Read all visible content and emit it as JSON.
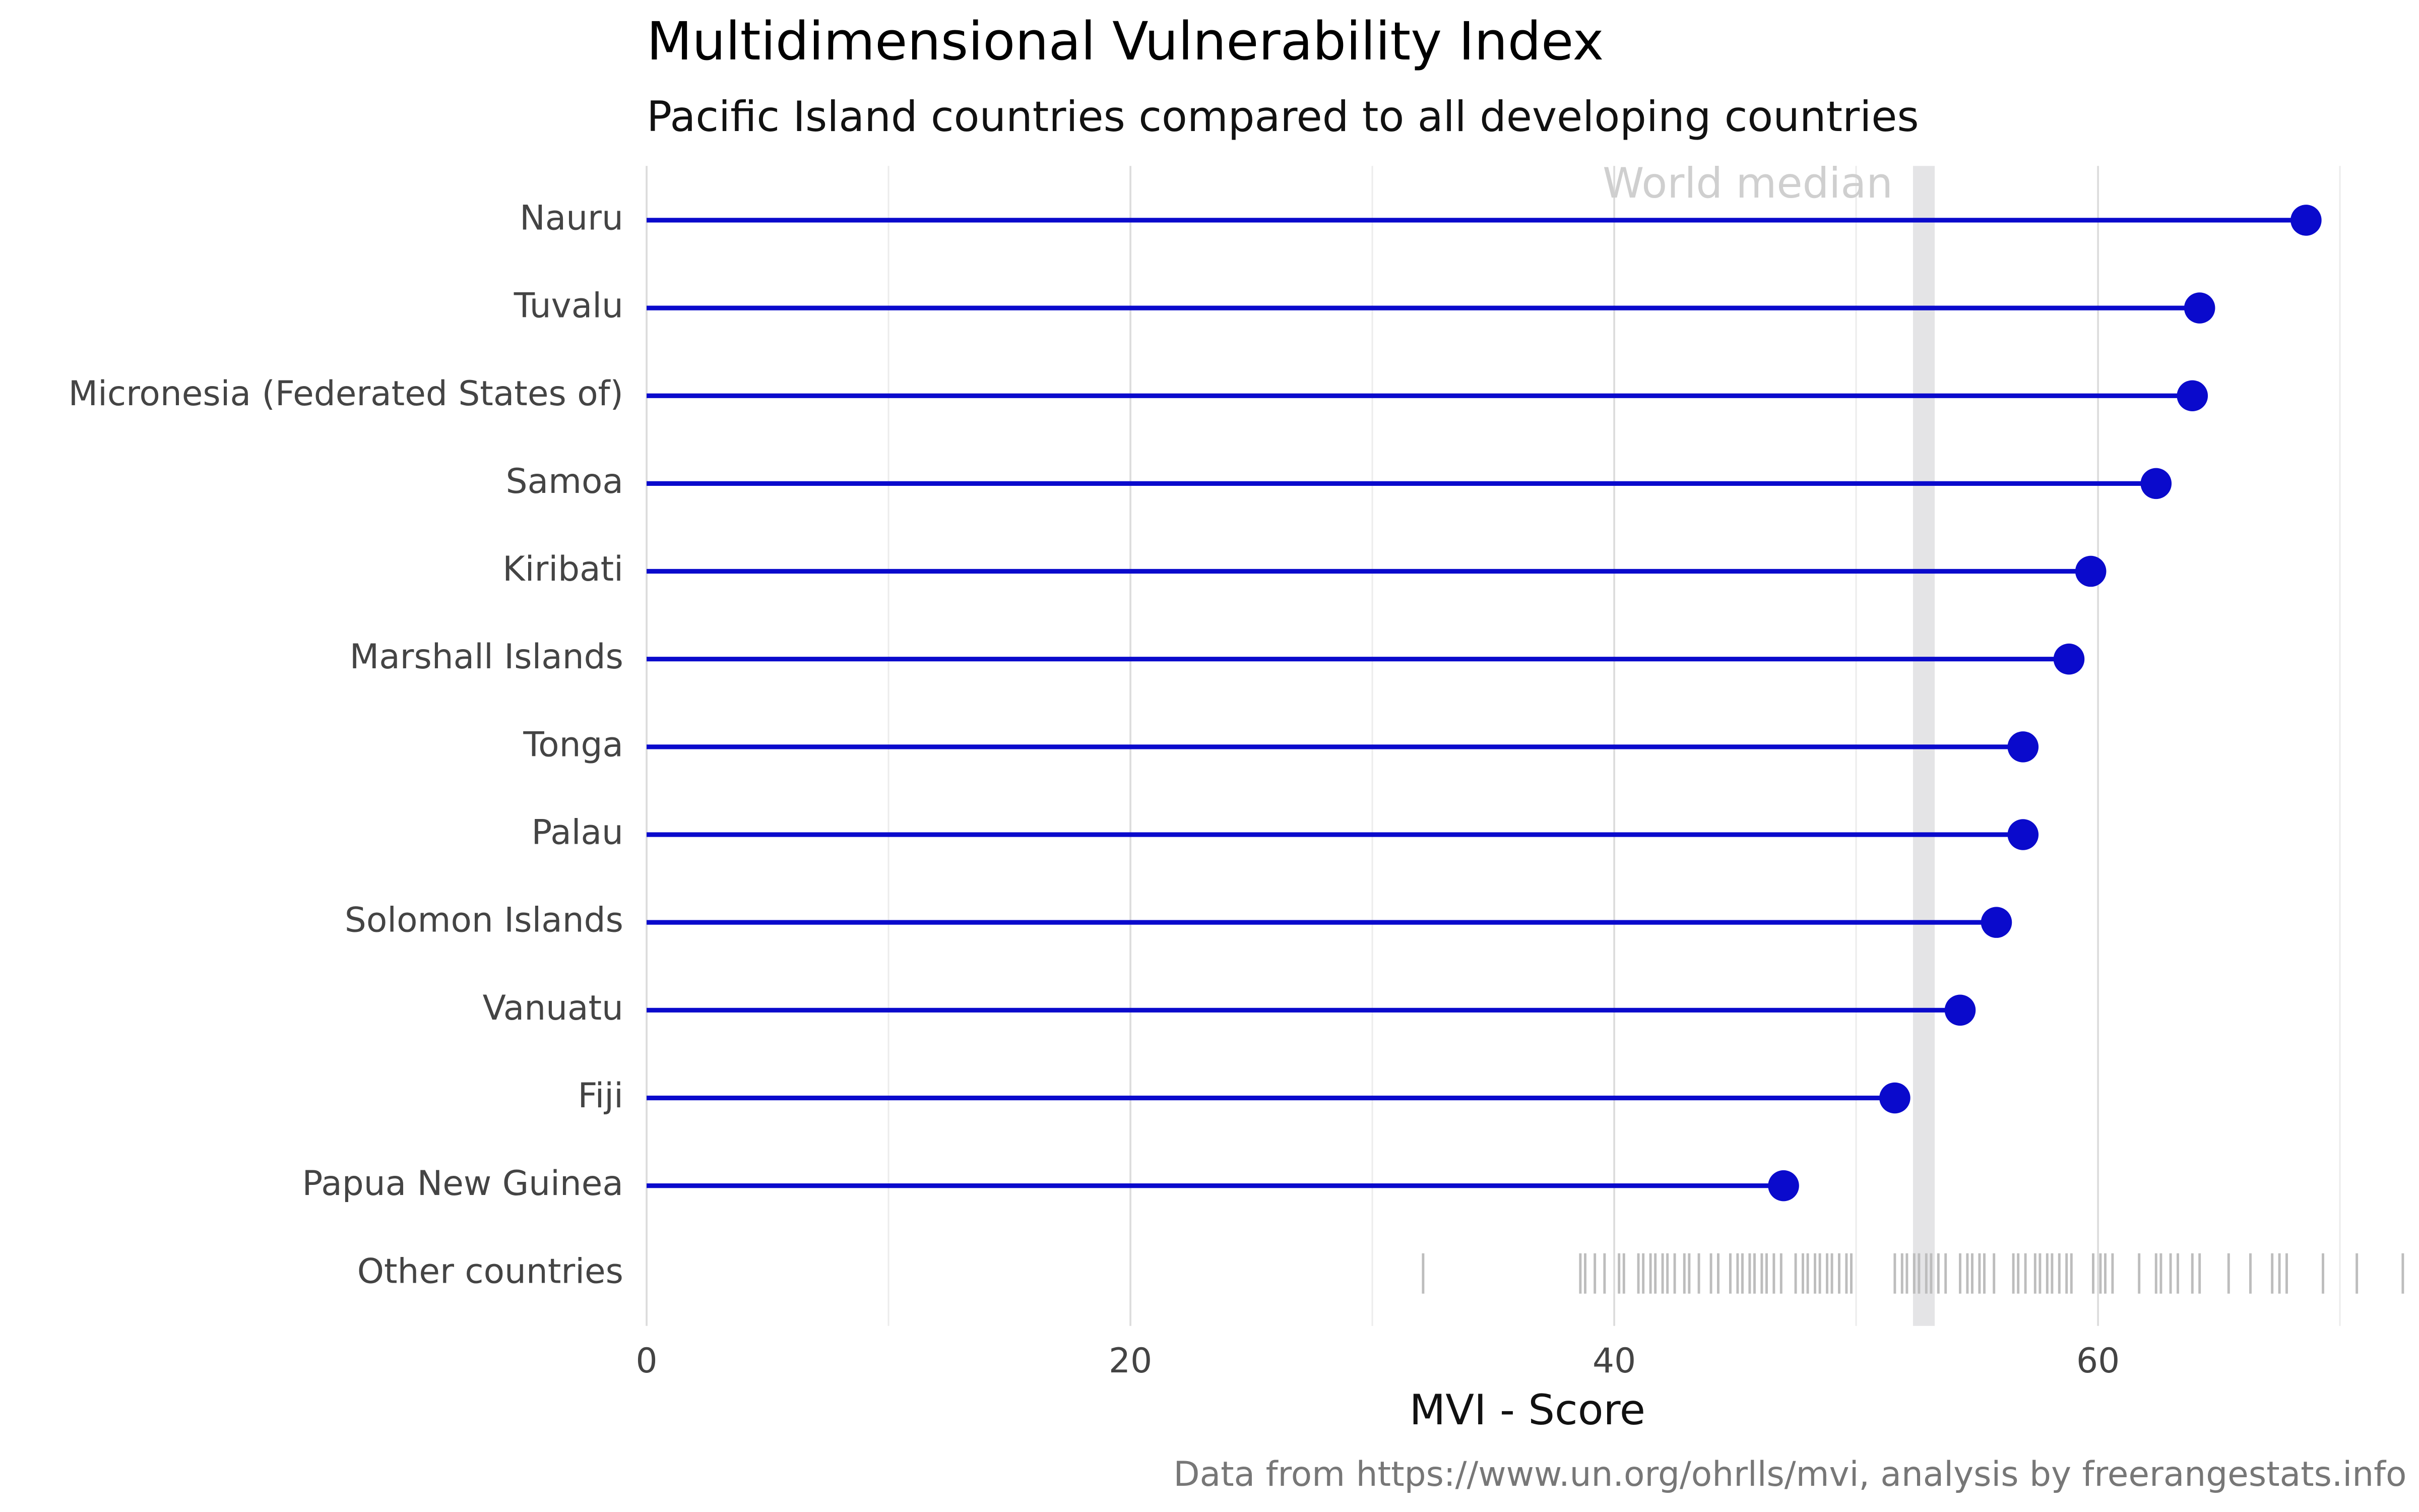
{
  "chart_data": {
    "type": "lollipop",
    "title": "Multidimensional Vulnerability Index",
    "subtitle": "Pacific Island countries compared to all developing countries",
    "x_label": "MVI - Score",
    "caption": "Data from https://www.un.org/ohrlls/mvi, analysis by freerangestats.info",
    "categories": [
      "Nauru",
      "Tuvalu",
      "Micronesia (Federated States of)",
      "Samoa",
      "Kiribati",
      "Marshall Islands",
      "Tonga",
      "Palau",
      "Solomon Islands",
      "Vanuatu",
      "Fiji",
      "Papua New Guinea"
    ],
    "values": [
      68.6,
      64.2,
      63.9,
      62.4,
      59.7,
      58.8,
      56.9,
      56.9,
      55.8,
      54.3,
      51.6,
      47.0
    ],
    "color": "#0a0acc",
    "median": 52.8,
    "median_label": "World median",
    "median_color": "#e4e4e6",
    "rug": {
      "label": "Other countries",
      "color": "#bdbdbd",
      "values": [
        32.1,
        38.6,
        38.8,
        39.2,
        39.6,
        40.2,
        40.4,
        41.0,
        41.2,
        41.5,
        41.7,
        42.0,
        42.2,
        42.5,
        42.9,
        43.1,
        43.5,
        44.0,
        44.3,
        44.8,
        45.1,
        45.3,
        45.6,
        45.8,
        46.1,
        46.3,
        46.6,
        46.9,
        47.5,
        47.8,
        48.0,
        48.3,
        48.5,
        48.8,
        49.0,
        49.3,
        49.6,
        49.8,
        51.6,
        51.9,
        52.1,
        52.4,
        52.6,
        52.9,
        53.1,
        53.4,
        53.7,
        54.3,
        54.6,
        54.8,
        55.1,
        55.3,
        55.7,
        56.5,
        56.7,
        57.0,
        57.4,
        57.6,
        57.9,
        58.1,
        58.4,
        58.7,
        58.9,
        59.8,
        60.1,
        60.3,
        60.6,
        61.7,
        62.4,
        62.6,
        63.0,
        63.3,
        63.9,
        64.2,
        65.4,
        66.3,
        67.2,
        67.5,
        67.8,
        69.3,
        70.7,
        72.6
      ]
    },
    "xlim": [
      0,
      73
    ],
    "xticks": [
      0,
      20,
      40,
      60
    ],
    "minor_xticks": [
      10,
      30,
      50,
      70
    ],
    "grid": true
  }
}
